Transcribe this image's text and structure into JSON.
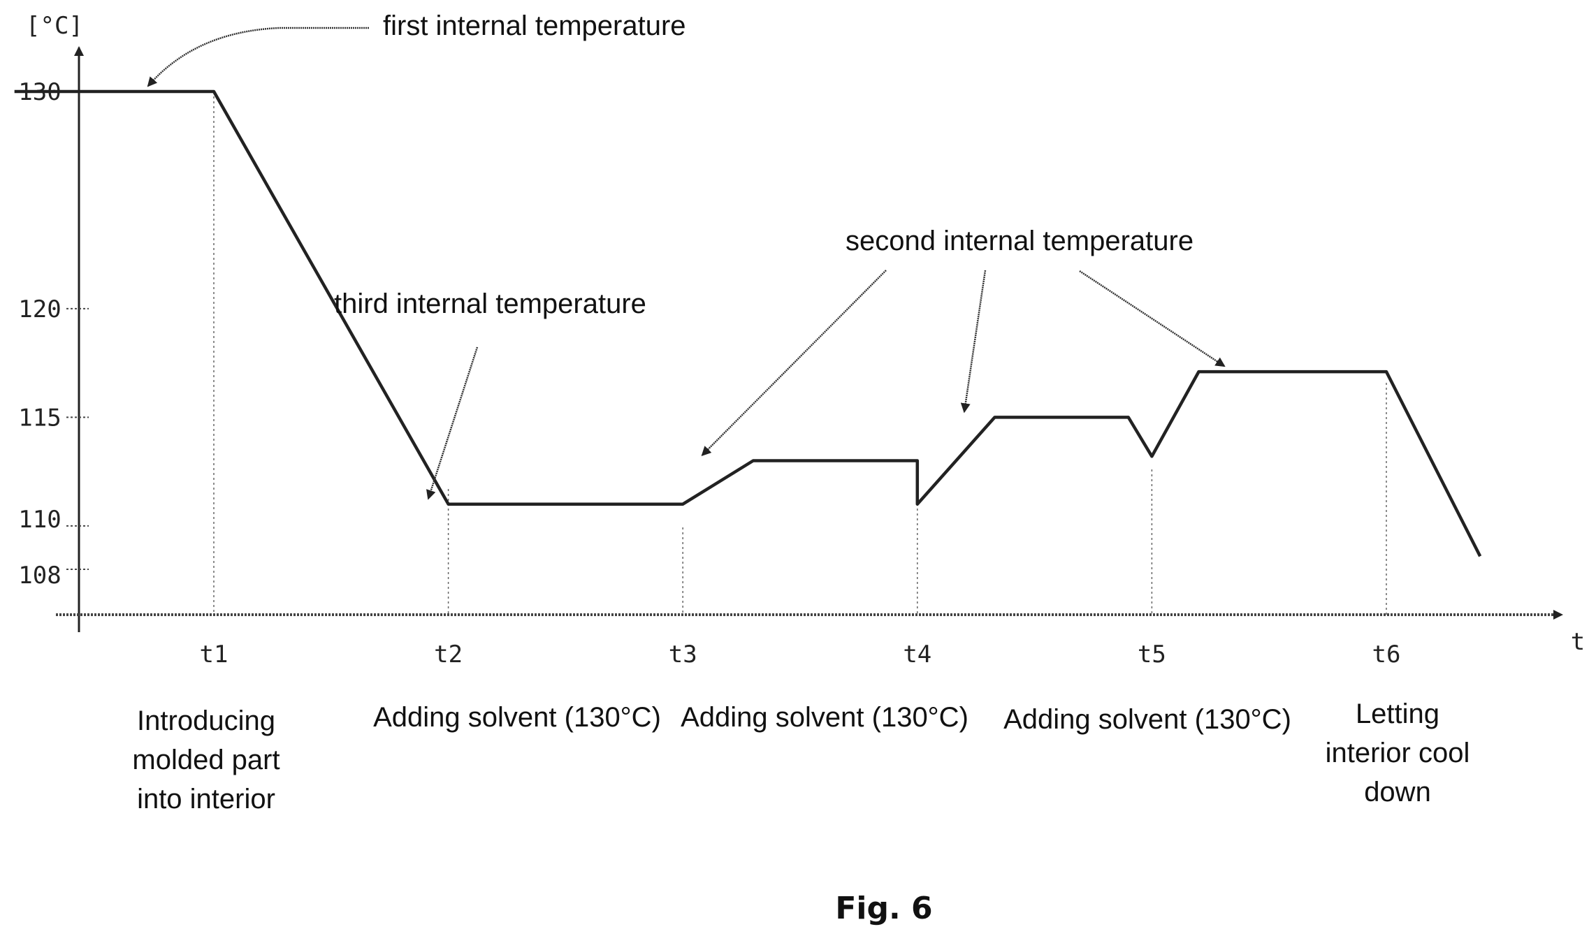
{
  "chart_data": {
    "type": "line",
    "ylabel": "[°C]",
    "xlabel": "t",
    "y_ticks": [
      108,
      110,
      115,
      120,
      130
    ],
    "y_tick_labels": [
      "108",
      "110",
      "115",
      "120",
      "130"
    ],
    "ylim": [
      107,
      133
    ],
    "x_ticks": [
      {
        "label": "t1",
        "x": 1.0
      },
      {
        "label": "t2",
        "x": 2.0
      },
      {
        "label": "t3",
        "x": 3.0
      },
      {
        "label": "t4",
        "x": 4.0
      },
      {
        "label": "t5",
        "x": 5.0
      },
      {
        "label": "t6",
        "x": 6.0
      }
    ],
    "xlim": [
      0.15,
      7.1
    ],
    "series": [
      {
        "points": [
          [
            0.15,
            130
          ],
          [
            1.0,
            130
          ],
          [
            2.0,
            111
          ],
          [
            3.0,
            111
          ],
          [
            3.3,
            113
          ],
          [
            4.0,
            113
          ],
          [
            4.0,
            111
          ],
          [
            4.33,
            115
          ],
          [
            4.9,
            115
          ],
          [
            5.0,
            113.2
          ],
          [
            5.2,
            117.1
          ],
          [
            6.0,
            117.1
          ],
          [
            6.4,
            108.6
          ]
        ]
      }
    ],
    "annotations": [
      {
        "text": "first internal temperature",
        "target": [
          0.5,
          130
        ]
      },
      {
        "text": "third internal temperature",
        "target": [
          2.3,
          111
        ]
      },
      {
        "text": "second internal temperature",
        "targets": [
          [
            3.7,
            113
          ],
          [
            4.6,
            115
          ],
          [
            5.3,
            117.1
          ]
        ]
      }
    ],
    "phase_labels": [
      {
        "lines": [
          "Introducing",
          "molded part",
          "into interior"
        ]
      },
      {
        "lines": [
          "Adding solvent (130°C)"
        ]
      },
      {
        "lines": [
          "Adding solvent (130°C)"
        ]
      },
      {
        "lines": [
          "Adding solvent (130°C)"
        ]
      },
      {
        "lines": [
          "Letting",
          "interior cool",
          "down"
        ]
      }
    ],
    "caption": "Fig. 6"
  }
}
